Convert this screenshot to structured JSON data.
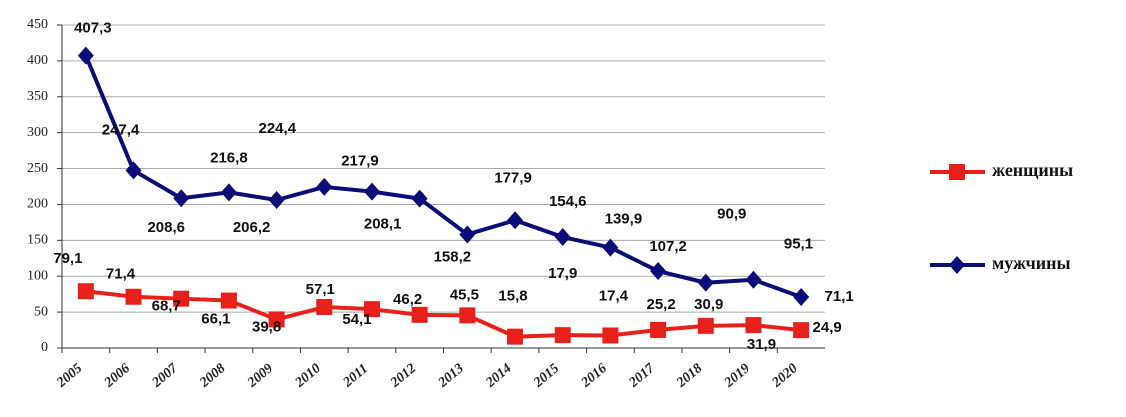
{
  "chart_data": {
    "type": "line",
    "categories": [
      "2005",
      "2006",
      "2007",
      "2008",
      "2009",
      "2010",
      "2011",
      "2012",
      "2013",
      "2014",
      "2015",
      "2016",
      "2017",
      "2018",
      "2019",
      "2020"
    ],
    "series": [
      {
        "name": "женщины",
        "color": "#e8201a",
        "marker": "square",
        "values": [
          79.1,
          71.4,
          68.7,
          66.1,
          39.8,
          57.1,
          54.1,
          46.2,
          45.5,
          15.8,
          17.9,
          17.4,
          25.2,
          30.9,
          31.9,
          24.9
        ],
        "value_labels": [
          "79,1",
          "71,4",
          "68,7",
          "66,1",
          "39,8",
          "57,1",
          "54,1",
          "46,2",
          "45,5",
          "15,8",
          "17,9",
          "17,4",
          "25,2",
          "30,9",
          "31,9",
          "24,9"
        ]
      },
      {
        "name": "мужчины",
        "color": "#0c0c78",
        "marker": "diamond",
        "values": [
          407.3,
          247.4,
          208.6,
          216.8,
          206.2,
          224.4,
          217.9,
          208.1,
          158.2,
          177.9,
          154.6,
          139.9,
          107.2,
          90.9,
          95.1,
          71.1
        ],
        "value_labels": [
          "407,3",
          "247,4",
          "208,6",
          "216,8",
          "206,2",
          "224,4",
          "217,9",
          "208,1",
          "158,2",
          "177,9",
          "154,6",
          "139,9",
          "107,2",
          "90,9",
          "95,1",
          "71,1"
        ]
      }
    ],
    "ylim": [
      0,
      450
    ],
    "yticks": [
      0,
      50,
      100,
      150,
      200,
      250,
      300,
      350,
      400,
      450
    ],
    "grid": true,
    "legend": "right"
  }
}
